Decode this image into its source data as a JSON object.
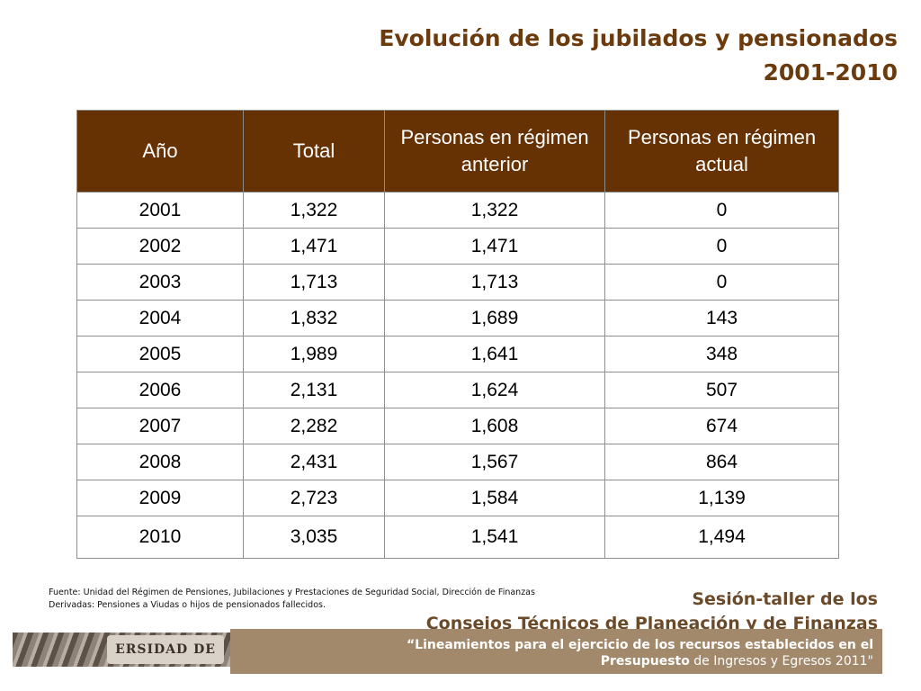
{
  "title": {
    "line1": "Evolución de los jubilados y pensionados",
    "line2": "2001-2010"
  },
  "table": {
    "headers": [
      "Año",
      "Total",
      "Personas en régimen anterior",
      "Personas en régimen actual"
    ],
    "rows": [
      [
        "2001",
        "1,322",
        "1,322",
        "0"
      ],
      [
        "2002",
        "1,471",
        "1,471",
        "0"
      ],
      [
        "2003",
        "1,713",
        "1,713",
        "0"
      ],
      [
        "2004",
        "1,832",
        "1,689",
        "143"
      ],
      [
        "2005",
        "1,989",
        "1,641",
        "348"
      ],
      [
        "2006",
        "2,131",
        "1,624",
        "507"
      ],
      [
        "2007",
        "2,282",
        "1,608",
        "674"
      ],
      [
        "2008",
        "2,431",
        "1,567",
        "864"
      ],
      [
        "2009",
        "2,723",
        "1,584",
        "1,139"
      ],
      [
        "2010",
        "3,035",
        "1,541",
        "1,494"
      ]
    ]
  },
  "footer": {
    "source": "Fuente: Unidad del Régimen de Pensiones, Jubilaciones y Prestaciones de Seguridad Social, Dirección de Finanzas",
    "note": "Derivadas: Pensiones a Viudas  o hijos de pensionados fallecidos."
  },
  "session": {
    "line1": "Sesión-taller de los",
    "line2": "Consejos Técnicos de Planeación y de Finanzas"
  },
  "banner": {
    "line1": "“Lineamientos para el ejercicio de los recursos establecidos en el",
    "line2_bold": "Presupuesto",
    "line2_rest": " de Ingresos y Egresos 2011\""
  },
  "seal_text": "ERSIDAD DE GUADA",
  "colors": {
    "header_bg": "#663203",
    "title": "#6b3a0d",
    "banner": "#a3896b"
  }
}
